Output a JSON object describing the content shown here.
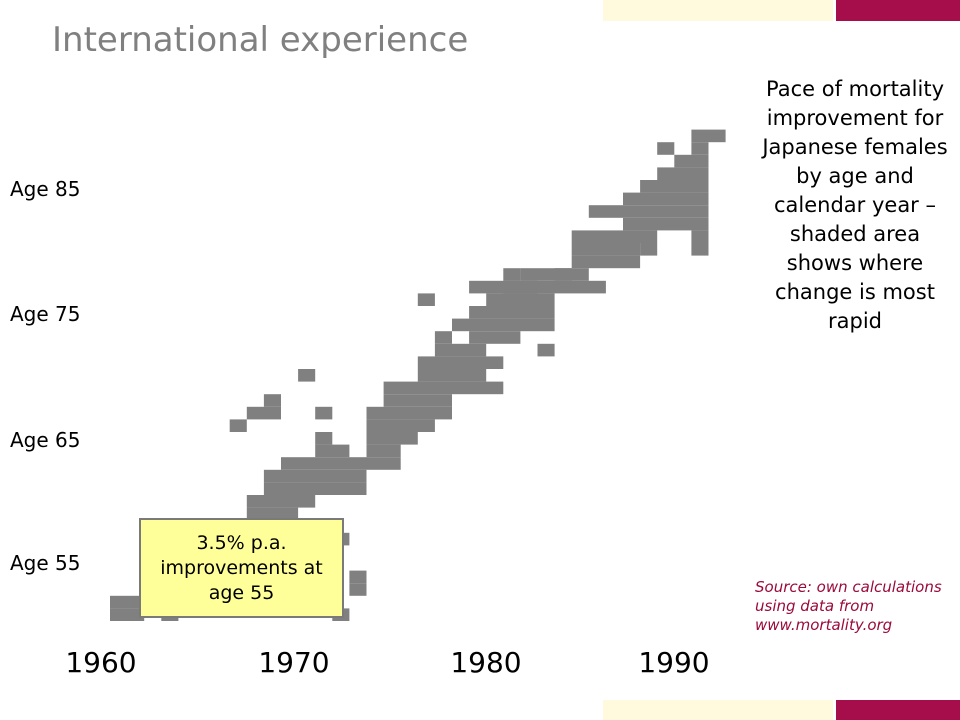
{
  "colors": {
    "accent_crimson": "#a50e4a",
    "accent_cream": "#fffadd",
    "title_gray": "#808080",
    "shade_gray": "#808080",
    "callout_fill": "#ffff99",
    "source_text": "#9b0a3c"
  },
  "title": "International experience",
  "description": "Pace of mortality improvement for Japanese females by age and calendar year – shaded area shows where change is most rapid",
  "callout": "3.5% p.a. improvements at age 55",
  "source": "Source: own calculations using data from www.mortality.org",
  "chart_data": {
    "type": "heatmap",
    "title": "",
    "x_ticks": [
      "1960",
      "1970",
      "1980",
      "1990"
    ],
    "y_ticks": [
      "Age 85",
      "Age 75",
      "Age 65",
      "Age 55"
    ],
    "x_range": [
      1960,
      1997
    ],
    "y_range": [
      51,
      89
    ],
    "cell_units": "1 calendar year × 1 year of age",
    "shaded_label": "most rapid improvement",
    "shaded_runs": [
      {
        "age": 51,
        "years": [
          [
            1962,
            1963
          ],
          [
            1965,
            1965
          ],
          [
            1975,
            1975
          ]
        ]
      },
      {
        "age": 52,
        "years": [
          [
            1962,
            1967
          ]
        ]
      },
      {
        "age": 53,
        "years": [
          [
            1970,
            1972
          ],
          [
            1976,
            1976
          ]
        ]
      },
      {
        "age": 54,
        "years": [
          [
            1971,
            1972
          ],
          [
            1976,
            1976
          ]
        ]
      },
      {
        "age": 55,
        "years": [
          [
            1972,
            1972
          ]
        ]
      },
      {
        "age": 57,
        "years": [
          [
            1969,
            1971
          ],
          [
            1974,
            1975
          ]
        ]
      },
      {
        "age": 58,
        "years": [
          [
            1969,
            1971
          ]
        ]
      },
      {
        "age": 59,
        "years": [
          [
            1970,
            1972
          ]
        ]
      },
      {
        "age": 60,
        "years": [
          [
            1970,
            1973
          ]
        ]
      },
      {
        "age": 61,
        "years": [
          [
            1971,
            1976
          ]
        ]
      },
      {
        "age": 62,
        "years": [
          [
            1971,
            1976
          ]
        ]
      },
      {
        "age": 63,
        "years": [
          [
            1972,
            1976
          ],
          [
            1977,
            1978
          ]
        ]
      },
      {
        "age": 64,
        "years": [
          [
            1974,
            1975
          ],
          [
            1977,
            1978
          ]
        ]
      },
      {
        "age": 65,
        "years": [
          [
            1974,
            1974
          ],
          [
            1977,
            1979
          ]
        ]
      },
      {
        "age": 66,
        "years": [
          [
            1969,
            1969
          ],
          [
            1977,
            1980
          ]
        ]
      },
      {
        "age": 67,
        "years": [
          [
            1970,
            1971
          ],
          [
            1974,
            1974
          ],
          [
            1977,
            1981
          ]
        ]
      },
      {
        "age": 68,
        "years": [
          [
            1971,
            1971
          ],
          [
            1978,
            1981
          ]
        ]
      },
      {
        "age": 69,
        "years": [
          [
            1978,
            1984
          ]
        ]
      },
      {
        "age": 70,
        "years": [
          [
            1973,
            1973
          ],
          [
            1980,
            1983
          ]
        ]
      },
      {
        "age": 71,
        "years": [
          [
            1980,
            1984
          ]
        ]
      },
      {
        "age": 72,
        "years": [
          [
            1981,
            1983
          ],
          [
            1987,
            1987
          ]
        ]
      },
      {
        "age": 73,
        "years": [
          [
            1981,
            1981
          ],
          [
            1983,
            1985
          ]
        ]
      },
      {
        "age": 74,
        "years": [
          [
            1982,
            1987
          ]
        ]
      },
      {
        "age": 75,
        "years": [
          [
            1983,
            1987
          ]
        ]
      },
      {
        "age": 76,
        "years": [
          [
            1980,
            1980
          ],
          [
            1984,
            1987
          ]
        ]
      },
      {
        "age": 77,
        "years": [
          [
            1986,
            1986
          ],
          [
            1983,
            1985
          ],
          [
            1985,
            1990
          ]
        ]
      },
      {
        "age": 78,
        "years": [
          [
            1985,
            1985
          ],
          [
            1988,
            1988
          ],
          [
            1986,
            1989
          ]
        ]
      },
      {
        "age": 79,
        "years": [
          [
            1989,
            1992
          ]
        ]
      },
      {
        "age": 80,
        "years": [
          [
            1989,
            1992
          ],
          [
            1993,
            1993
          ],
          [
            1996,
            1996
          ]
        ]
      },
      {
        "age": 81,
        "years": [
          [
            1989,
            1993
          ],
          [
            1996,
            1996
          ]
        ]
      },
      {
        "age": 82,
        "years": [
          [
            1992,
            1996
          ]
        ]
      },
      {
        "age": 83,
        "years": [
          [
            1990,
            1996
          ]
        ]
      },
      {
        "age": 84,
        "years": [
          [
            1992,
            1996
          ]
        ]
      },
      {
        "age": 85,
        "years": [
          [
            1993,
            1996
          ]
        ]
      },
      {
        "age": 86,
        "years": [
          [
            1994,
            1996
          ]
        ]
      },
      {
        "age": 87,
        "years": [
          [
            1995,
            1996
          ]
        ]
      },
      {
        "age": 88,
        "years": [
          [
            1994,
            1994
          ],
          [
            1996,
            1996
          ]
        ]
      },
      {
        "age": 89,
        "years": [
          [
            1996,
            1997
          ]
        ]
      }
    ]
  }
}
